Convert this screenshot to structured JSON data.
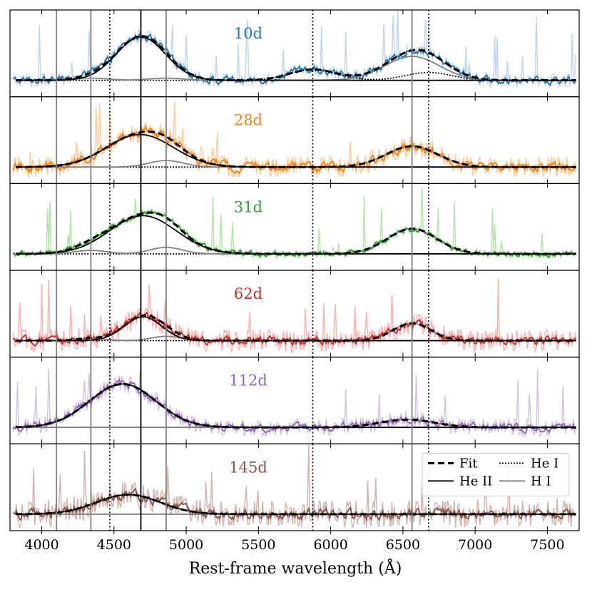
{
  "chart_data": {
    "type": "line",
    "xlabel": "Rest-frame wavelength (Å)",
    "xlim": [
      3780,
      7720
    ],
    "x_ticks": [
      4000,
      4500,
      5000,
      5500,
      6000,
      6500,
      7000,
      7500
    ],
    "x_tick_labels": [
      "4000",
      "4500",
      "5000",
      "5500",
      "6000",
      "6500",
      "7000",
      "7500"
    ],
    "reference_lines": {
      "He_II": [
        4686
      ],
      "H_I": [
        4102,
        4340,
        4861,
        6563
      ],
      "He_I": [
        4471,
        5876,
        6678
      ]
    },
    "legend": {
      "position": "lower-right of bottom panel",
      "entries": [
        {
          "label": "Fit",
          "style": "dashed-thick"
        },
        {
          "label": "He I",
          "style": "dotted"
        },
        {
          "label": "He II",
          "style": "solid-black"
        },
        {
          "label": "H I",
          "style": "solid-gray"
        }
      ]
    },
    "panels": [
      {
        "label": "10d",
        "color": "#1f77b4",
        "light_color": "#aec7e8",
        "noise": 0.09,
        "light_noise": 0.16,
        "he2": {
          "center": 4686,
          "sigma": 170,
          "amp": 1.0
        },
        "h1": [
          {
            "center": 4340,
            "sigma": 120,
            "amp": 0.05
          },
          {
            "center": 4861,
            "sigma": 120,
            "amp": 0.05
          },
          {
            "center": 6563,
            "sigma": 190,
            "amp": 0.55
          }
        ],
        "he1": [
          {
            "center": 5876,
            "sigma": 160,
            "amp": 0.25
          },
          {
            "center": 6678,
            "sigma": 160,
            "amp": 0.18
          }
        ]
      },
      {
        "label": "28d",
        "color": "#ff7f0e",
        "light_color": "#ffbb78",
        "noise": 0.12,
        "light_noise": 0.25,
        "he2": {
          "center": 4680,
          "sigma": 230,
          "amp": 0.75
        },
        "h1": [
          {
            "center": 4861,
            "sigma": 120,
            "amp": 0.15
          },
          {
            "center": 6563,
            "sigma": 180,
            "amp": 0.48
          }
        ],
        "he1": []
      },
      {
        "label": "31d",
        "color": "#2ca02c",
        "light_color": "#98df8a",
        "noise": 0.06,
        "light_noise": 0.1,
        "he2": {
          "center": 4700,
          "sigma": 230,
          "amp": 0.88
        },
        "h1": [
          {
            "center": 4340,
            "sigma": 110,
            "amp": 0.08
          },
          {
            "center": 4861,
            "sigma": 110,
            "amp": 0.15
          },
          {
            "center": 6563,
            "sigma": 170,
            "amp": 0.58
          }
        ],
        "he1": []
      },
      {
        "label": "62d",
        "color": "#d62728",
        "light_color": "#ff9896",
        "noise": 0.1,
        "light_noise": 0.26,
        "he2": {
          "center": 4700,
          "sigma": 130,
          "amp": 0.55
        },
        "h1": [
          {
            "center": 4340,
            "sigma": 100,
            "amp": 0.05
          },
          {
            "center": 4861,
            "sigma": 100,
            "amp": 0.1
          },
          {
            "center": 6563,
            "sigma": 130,
            "amp": 0.4
          }
        ],
        "he1": []
      },
      {
        "label": "112d",
        "color": "#9467bd",
        "light_color": "#c5b0d5",
        "noise": 0.1,
        "light_noise": 0.2,
        "he2": {
          "center": 4560,
          "sigma": 230,
          "amp": 1.0
        },
        "h1": [
          {
            "center": 6530,
            "sigma": 190,
            "amp": 0.18
          }
        ],
        "he1": []
      },
      {
        "label": "145d",
        "color": "#8c564b",
        "light_color": "#c49c94",
        "noise": 0.13,
        "light_noise": 0.32,
        "he2": {
          "center": 4600,
          "sigma": 220,
          "amp": 0.45
        },
        "h1": [],
        "he1": []
      }
    ]
  }
}
